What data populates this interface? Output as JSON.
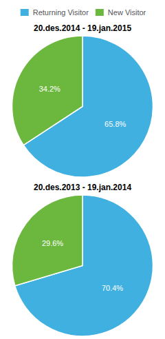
{
  "chart_data": [
    {
      "type": "pie",
      "title": "20.des.2014 - 19.jan.2015",
      "categories": [
        "Returning Visitor",
        "New Visitor"
      ],
      "values": [
        65.8,
        34.2
      ],
      "value_labels": [
        "65.8%",
        "34.2%"
      ],
      "colors": [
        "#3fb0e0",
        "#6cb83e"
      ],
      "data_labels": true,
      "legend": "top"
    },
    {
      "type": "pie",
      "title": "20.des.2013 - 19.jan.2014",
      "categories": [
        "Returning Visitor",
        "New Visitor"
      ],
      "values": [
        70.4,
        29.6
      ],
      "value_labels": [
        "70.4%",
        "29.6%"
      ],
      "colors": [
        "#3fb0e0",
        "#6cb83e"
      ],
      "data_labels": true
    }
  ]
}
